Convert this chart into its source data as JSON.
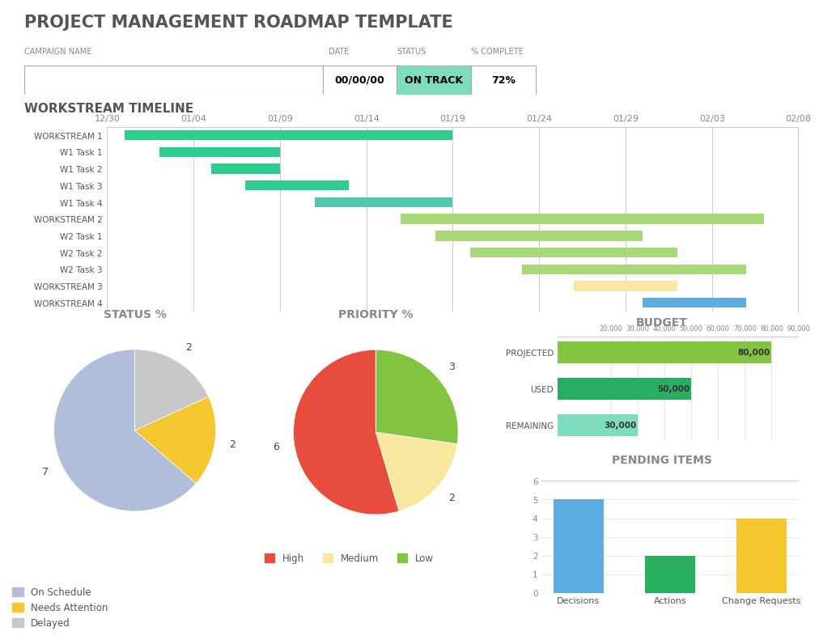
{
  "title": "PROJECT MANAGEMENT ROADMAP TEMPLATE",
  "header_labels": [
    "CAMPAIGN NAME",
    "DATE",
    "STATUS",
    "% COMPLETE"
  ],
  "header_values": [
    "",
    "00/00/00",
    "ON TRACK",
    "72%"
  ],
  "status_color": "#7DDDBE",
  "section_title": "WORKSTREAM TIMELINE",
  "timeline_dates": [
    "12/30",
    "01/04",
    "01/09",
    "01/14",
    "01/19",
    "01/24",
    "01/29",
    "02/03",
    "02/08"
  ],
  "date_positions": [
    0,
    5,
    10,
    15,
    20,
    25,
    30,
    35,
    40
  ],
  "gantt_tasks": [
    {
      "label": "WORKSTREAM 1",
      "start": 1,
      "end": 20,
      "color": "#2ECC8E",
      "bold": true
    },
    {
      "label": "W1 Task 1",
      "start": 3,
      "end": 10,
      "color": "#2ECC8E",
      "bold": false
    },
    {
      "label": "W1 Task 2",
      "start": 6,
      "end": 10,
      "color": "#2ECC8E",
      "bold": false
    },
    {
      "label": "W1 Task 3",
      "start": 8,
      "end": 14,
      "color": "#2ECC8E",
      "bold": false
    },
    {
      "label": "W1 Task 4",
      "start": 12,
      "end": 20,
      "color": "#52C8B0",
      "bold": false
    },
    {
      "label": "WORKSTREAM 2",
      "start": 17,
      "end": 38,
      "color": "#A8D878",
      "bold": true
    },
    {
      "label": "W2 Task 1",
      "start": 19,
      "end": 31,
      "color": "#A8D878",
      "bold": false
    },
    {
      "label": "W2 Task 2",
      "start": 21,
      "end": 33,
      "color": "#A8D878",
      "bold": false
    },
    {
      "label": "W2 Task 3",
      "start": 24,
      "end": 37,
      "color": "#A8D878",
      "bold": false
    },
    {
      "label": "WORKSTREAM 3",
      "start": 27,
      "end": 33,
      "color": "#F9E79F",
      "bold": true
    },
    {
      "label": "WORKSTREAM 4",
      "start": 31,
      "end": 37,
      "color": "#5DADE2",
      "bold": true
    }
  ],
  "status_pie_title": "STATUS %",
  "status_pie_values": [
    7,
    2,
    2
  ],
  "status_pie_labels": [
    "On Schedule",
    "Needs Attention",
    "Delayed"
  ],
  "status_pie_colors": [
    "#B0BED9",
    "#F4C72F",
    "#C8C8C8"
  ],
  "priority_pie_title": "PRIORITY %",
  "priority_pie_values": [
    6,
    2,
    3,
    0
  ],
  "priority_pie_labels": [
    "High",
    "Medium",
    "Low",
    ""
  ],
  "priority_pie_colors": [
    "#E74C3C",
    "#F9E79F",
    "#82C341",
    "#FFFFFF"
  ],
  "budget_title": "BUDGET",
  "budget_categories": [
    "PROJECTED",
    "USED",
    "REMAINING"
  ],
  "budget_values": [
    80000,
    50000,
    30000
  ],
  "budget_colors": [
    "#82C341",
    "#27AE60",
    "#7DDDBE"
  ],
  "budget_xlim": [
    0,
    90000
  ],
  "budget_xticks": [
    20000,
    30000,
    40000,
    50000,
    60000,
    70000,
    80000,
    90000
  ],
  "pending_title": "PENDING ITEMS",
  "pending_categories": [
    "Decisions",
    "Actions",
    "Change Requests"
  ],
  "pending_values": [
    5,
    2,
    4
  ],
  "pending_colors": [
    "#5DADE2",
    "#27AE60",
    "#F4C72F"
  ],
  "pending_ylim": [
    0,
    6
  ],
  "pending_yticks": [
    0,
    1,
    2,
    3,
    4,
    5,
    6
  ]
}
